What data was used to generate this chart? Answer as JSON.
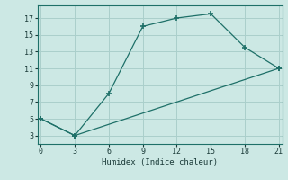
{
  "xlabel": "Humidex (Indice chaleur)",
  "bg_color": "#cce8e4",
  "grid_color": "#aacfcb",
  "line_color": "#1e7068",
  "line1_x": [
    0,
    3,
    6,
    9,
    12,
    15,
    18,
    21
  ],
  "line1_y": [
    5,
    3,
    8,
    16,
    17,
    17.5,
    13.5,
    11
  ],
  "line2_x": [
    0,
    3,
    21
  ],
  "line2_y": [
    5,
    3,
    11
  ],
  "xlim": [
    -0.3,
    21.3
  ],
  "ylim": [
    2.0,
    18.5
  ],
  "xticks": [
    0,
    3,
    6,
    9,
    12,
    15,
    18,
    21
  ],
  "yticks": [
    3,
    5,
    7,
    9,
    11,
    13,
    15,
    17
  ]
}
